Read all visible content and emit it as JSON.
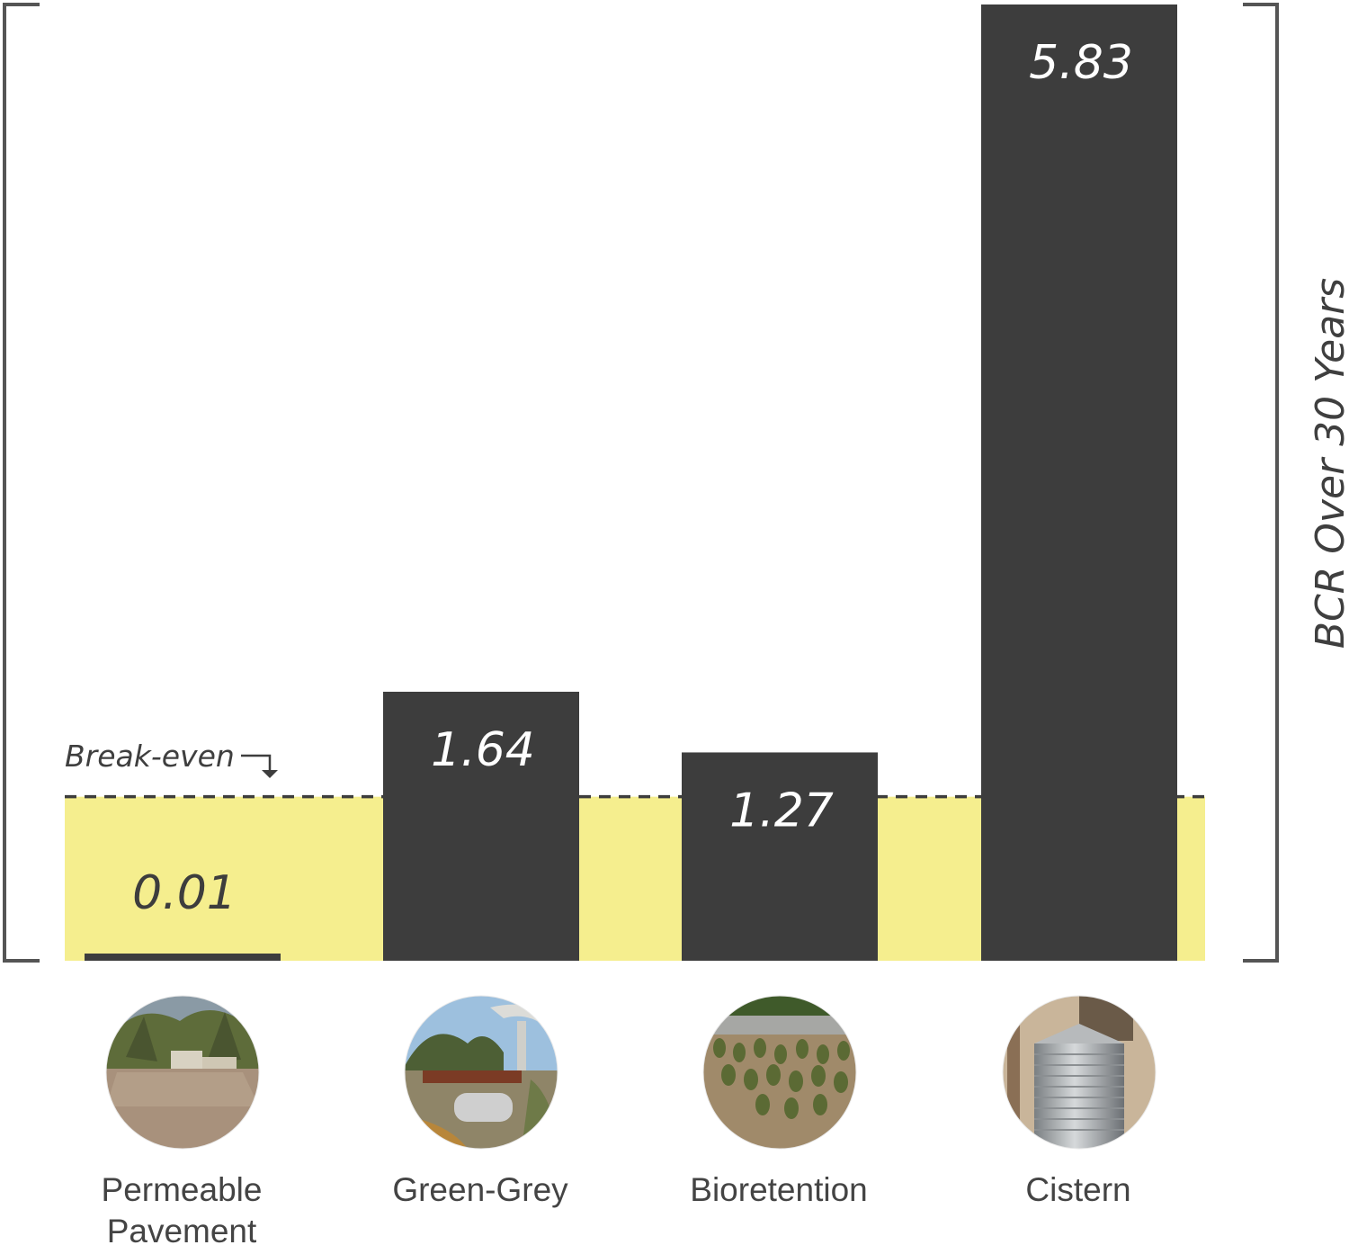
{
  "chart_data": {
    "type": "bar",
    "categories": [
      "Permeable Pavement",
      "Green-Grey",
      "Bioretention",
      "Cistern"
    ],
    "category_label_lines": [
      [
        "Permeable",
        "Pavement"
      ],
      [
        "Green-Grey"
      ],
      [
        "Bioretention"
      ],
      [
        "Cistern"
      ]
    ],
    "values": [
      0.01,
      1.64,
      1.27,
      5.83
    ],
    "value_labels": [
      "0.01",
      "1.64",
      "1.27",
      "5.83"
    ],
    "ylabel": "BCR Over 30 Years",
    "ylim": [
      0,
      5.83
    ],
    "reference_line": {
      "value": 1,
      "label": "Break-even"
    },
    "grid": false,
    "colors": {
      "bar": "#3d3d3d",
      "below_break_even_band": "#f5ee8e",
      "bracket": "#555555",
      "value_label_on_bar": "#ffffff",
      "value_label_on_band": "#3d3d3d"
    },
    "icons": [
      "permeable-pavement-photo-icon",
      "green-grey-photo-icon",
      "bioretention-photo-icon",
      "cistern-photo-icon"
    ]
  }
}
